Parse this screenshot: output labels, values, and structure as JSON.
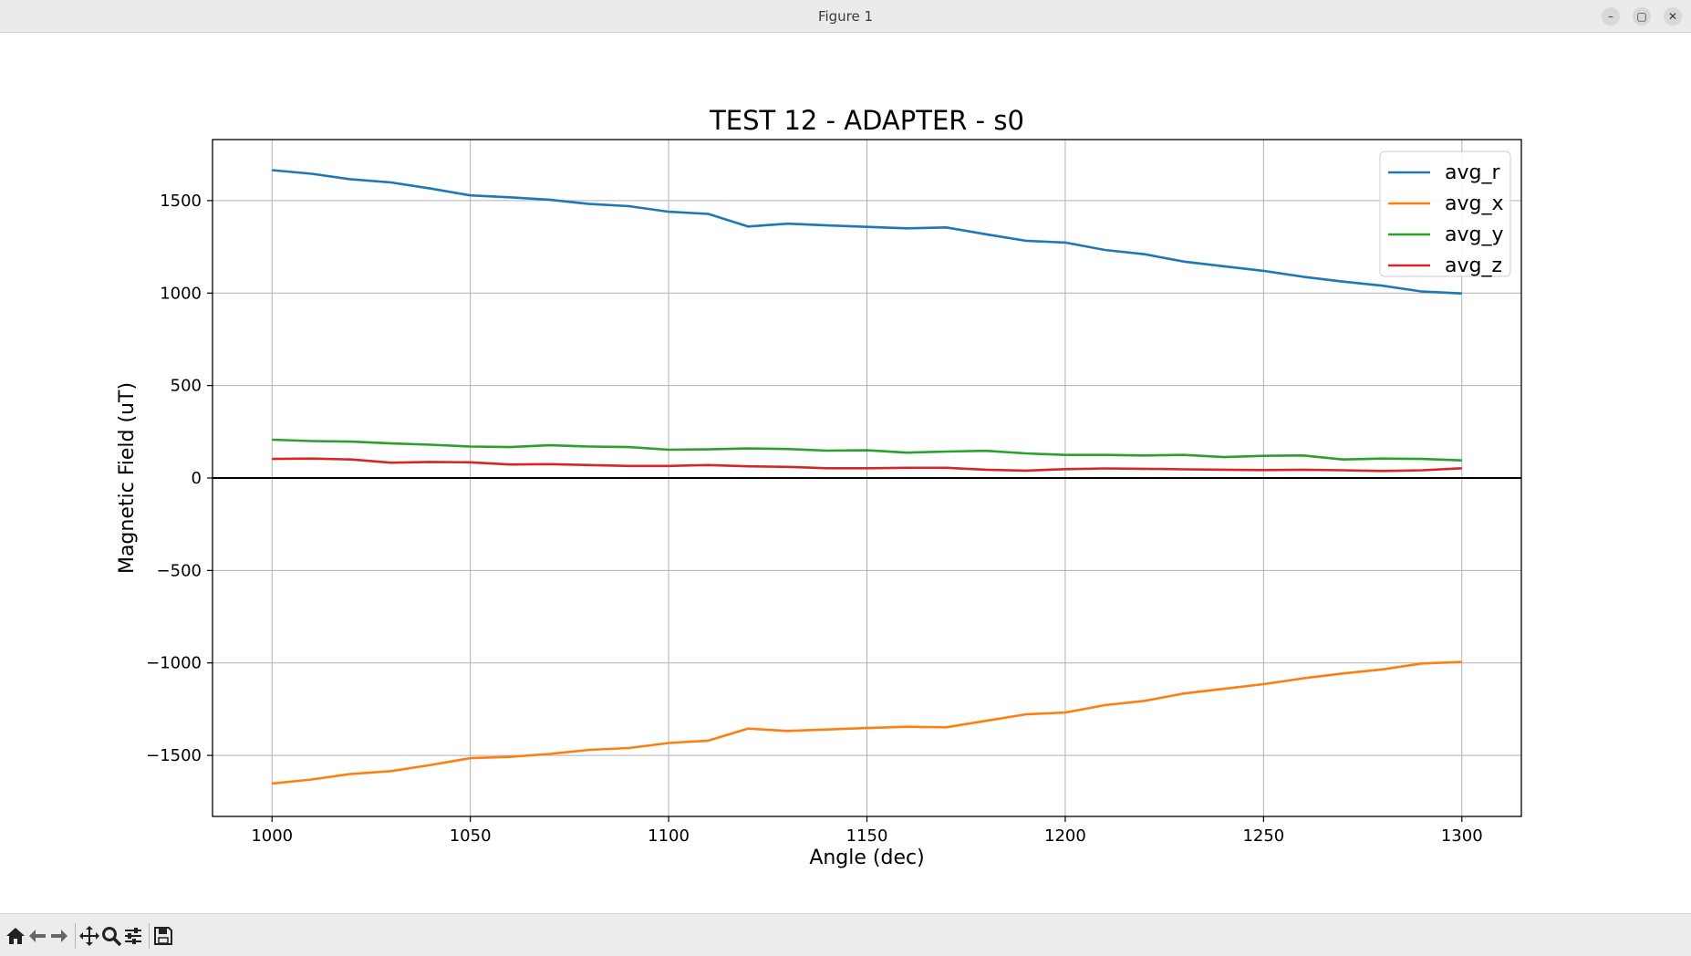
{
  "window": {
    "title": "Figure 1",
    "minimize": "–",
    "maximize": "▢",
    "close": "✕"
  },
  "toolbar": {
    "icons": [
      "home-icon",
      "back-icon",
      "forward-icon",
      "pan-icon",
      "zoom-icon",
      "configure-subplots-icon",
      "save-icon"
    ]
  },
  "chart_data": {
    "type": "line",
    "title": "TEST 12 - ADAPTER - s0",
    "xlabel": "Angle (dec)",
    "ylabel": "Magnetic Field (uT)",
    "xlim": [
      985,
      1315
    ],
    "ylim": [
      -1830,
      1830
    ],
    "xticks": [
      1000,
      1050,
      1100,
      1150,
      1200,
      1250,
      1300
    ],
    "yticks": [
      -1500,
      -1000,
      -500,
      0,
      500,
      1000,
      1500
    ],
    "xtick_labels": [
      "1000",
      "1050",
      "1100",
      "1150",
      "1200",
      "1250",
      "1300"
    ],
    "ytick_labels": [
      "−1500",
      "−1000",
      "−500",
      "0",
      "500",
      "1000",
      "1500"
    ],
    "grid": true,
    "zero_line": true,
    "legend_position": "top-right",
    "x": [
      1000,
      1010,
      1020,
      1030,
      1040,
      1050,
      1060,
      1070,
      1080,
      1090,
      1100,
      1110,
      1120,
      1130,
      1140,
      1150,
      1160,
      1170,
      1180,
      1190,
      1200,
      1210,
      1220,
      1230,
      1240,
      1250,
      1260,
      1270,
      1280,
      1290,
      1300
    ],
    "series": [
      {
        "name": "avg_r",
        "color": "#1f77b4",
        "values": [
          1665,
          1645,
          1615,
          1598,
          1565,
          1528,
          1518,
          1505,
          1482,
          1470,
          1440,
          1428,
          1360,
          1375,
          1366,
          1358,
          1350,
          1355,
          1318,
          1283,
          1273,
          1233,
          1210,
          1170,
          1145,
          1120,
          1088,
          1062,
          1040,
          1008,
          998
        ]
      },
      {
        "name": "avg_x",
        "color": "#ff7f0e",
        "values": [
          -1652,
          -1630,
          -1600,
          -1585,
          -1552,
          -1515,
          -1508,
          -1492,
          -1470,
          -1460,
          -1433,
          -1420,
          -1355,
          -1368,
          -1360,
          -1352,
          -1345,
          -1348,
          -1313,
          -1278,
          -1268,
          -1228,
          -1205,
          -1165,
          -1140,
          -1115,
          -1083,
          -1057,
          -1035,
          -1003,
          -995
        ]
      },
      {
        "name": "avg_y",
        "color": "#2ca02c",
        "values": [
          207,
          200,
          197,
          187,
          180,
          170,
          167,
          177,
          170,
          167,
          153,
          155,
          160,
          157,
          148,
          150,
          137,
          143,
          147,
          133,
          125,
          125,
          122,
          125,
          113,
          120,
          122,
          100,
          105,
          103,
          95
        ]
      },
      {
        "name": "avg_z",
        "color": "#d62728",
        "values": [
          103,
          105,
          100,
          83,
          87,
          85,
          73,
          75,
          70,
          65,
          65,
          70,
          63,
          60,
          53,
          53,
          55,
          55,
          45,
          40,
          48,
          52,
          50,
          47,
          45,
          43,
          45,
          42,
          38,
          42,
          53
        ]
      }
    ]
  }
}
